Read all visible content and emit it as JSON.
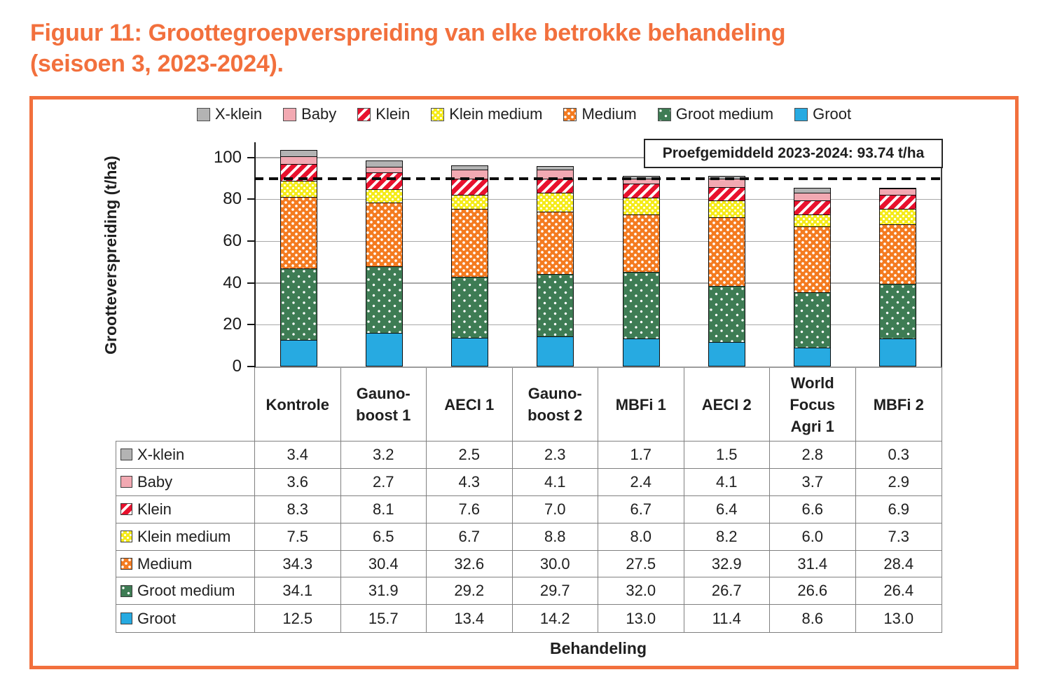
{
  "page_title": {
    "line1": "Figuur 11: Groottegroepverspreiding van elke betrokke behandeling",
    "line2": "(seisoen 3, 2023-2024)."
  },
  "frame_color": "#F2703D",
  "chart_data": {
    "type": "bar",
    "stacked": true,
    "grid": true,
    "legend_position": "top",
    "ylabel": "Grootteverspreiding (t/ha)",
    "xlabel": "Behandeling",
    "annotation": "Proefgemiddeld 2023-2024: 93.74 t/ha",
    "reference_line_y": 90,
    "ylim": [
      0,
      108
    ],
    "yticks": [
      0,
      20,
      40,
      60,
      80,
      100
    ],
    "categories": [
      "Kontrole",
      "Gauno-boost 1",
      "AECI 1",
      "Gauno-boost 2",
      "MBFi 1",
      "AECI 2",
      "World Focus Agri 1",
      "MBFi 2"
    ],
    "category_labels": [
      "Kontrole",
      "Gauno-\nboost 1",
      "AECI 1",
      "Gauno-\nboost 2",
      "MBFi 1",
      "AECI 2",
      "World\nFocus\nAgri 1",
      "MBFi 2"
    ],
    "series": [
      {
        "name": "X-klein",
        "color": "#B3B3B3",
        "pattern": "solid",
        "values": [
          3.4,
          3.2,
          2.5,
          2.3,
          1.7,
          1.5,
          2.8,
          0.3
        ]
      },
      {
        "name": "Baby",
        "color": "#F2A9B2",
        "pattern": "solid",
        "values": [
          3.6,
          2.7,
          4.3,
          4.1,
          2.4,
          4.1,
          3.7,
          2.9
        ]
      },
      {
        "name": "Klein",
        "color": "#E8112D",
        "pattern": "stripes",
        "values": [
          8.3,
          8.1,
          7.6,
          7.0,
          6.7,
          6.4,
          6.6,
          6.9
        ]
      },
      {
        "name": "Klein medium",
        "color": "#F5EB1A",
        "pattern": "dots-small",
        "values": [
          7.5,
          6.5,
          6.7,
          8.8,
          8.0,
          8.2,
          6.0,
          7.3
        ]
      },
      {
        "name": "Medium",
        "color": "#F47B20",
        "pattern": "dots",
        "values": [
          34.3,
          30.4,
          32.6,
          30.0,
          27.5,
          32.9,
          31.4,
          28.4
        ]
      },
      {
        "name": "Groot medium",
        "color": "#3E7C54",
        "pattern": "dots-sparse",
        "values": [
          34.1,
          31.9,
          29.2,
          29.7,
          32.0,
          26.7,
          26.6,
          26.4
        ]
      },
      {
        "name": "Groot",
        "color": "#27AAE1",
        "pattern": "solid",
        "values": [
          12.5,
          15.7,
          13.4,
          14.2,
          13.0,
          11.4,
          8.6,
          13.0
        ]
      }
    ]
  }
}
